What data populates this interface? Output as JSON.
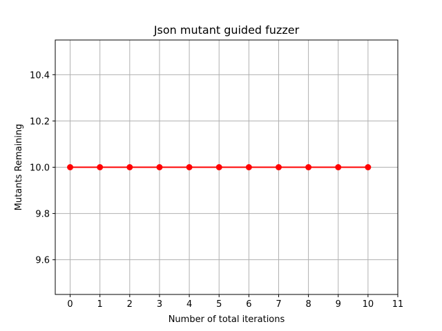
{
  "chart_data": {
    "type": "line",
    "title": "Json mutant guided fuzzer",
    "xlabel": "Number of total iterations",
    "ylabel": "Mutants Remaining",
    "x": [
      0,
      1,
      2,
      3,
      4,
      5,
      6,
      7,
      8,
      9,
      10
    ],
    "series": [
      {
        "values": [
          10,
          10,
          10,
          10,
          10,
          10,
          10,
          10,
          10,
          10,
          10
        ],
        "color": "#ff0000",
        "marker": "circle"
      }
    ],
    "xlim": [
      -0.5,
      11
    ],
    "ylim": [
      9.45,
      10.55
    ],
    "xticks": [
      "0",
      "1",
      "2",
      "3",
      "4",
      "5",
      "6",
      "7",
      "8",
      "9",
      "10",
      "11"
    ],
    "yticks": [
      "9.6",
      "9.8",
      "10.0",
      "10.2",
      "10.4"
    ],
    "grid": true,
    "grid_color": "#b0b0b0"
  }
}
